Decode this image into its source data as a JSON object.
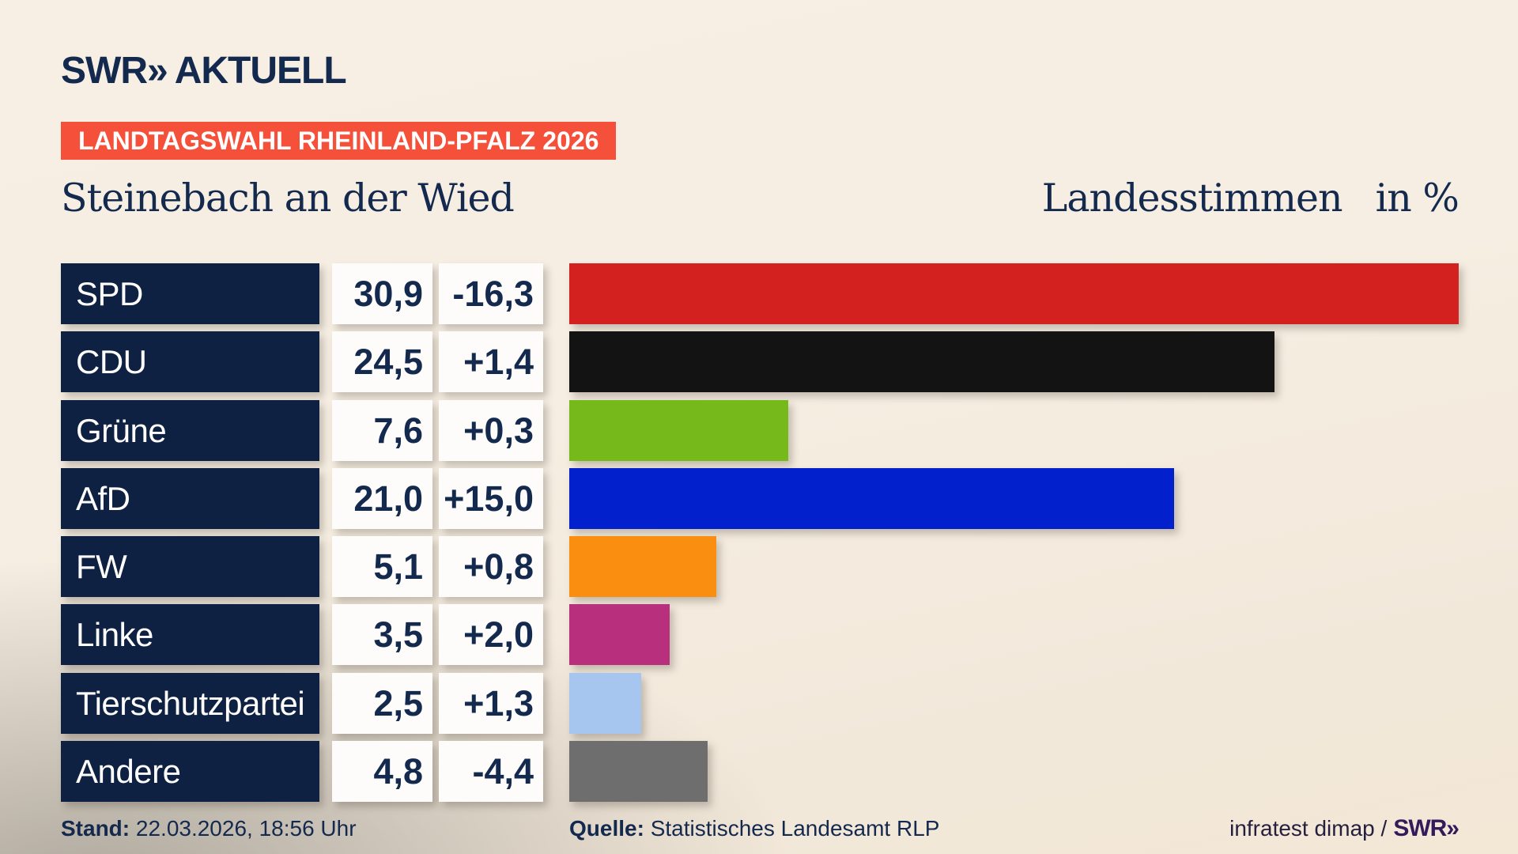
{
  "header": {
    "logo": {
      "swr": "SWR",
      "chevron": "»",
      "aktuell": "AKTUELL"
    },
    "badge": "LANDTAGSWAHL RHEINLAND-PFALZ 2026",
    "title_left": "Steinebach an der Wied",
    "title_right": "Landesstimmen",
    "title_unit": "in %"
  },
  "chart_data": {
    "type": "bar",
    "orientation": "horizontal",
    "title": "Steinebach an der Wied",
    "value_label": "Landesstimmen",
    "unit": "in %",
    "axis_max": 30.9,
    "grid": false,
    "legend": false,
    "categories": [
      "SPD",
      "CDU",
      "Grüne",
      "AfD",
      "FW",
      "Linke",
      "Tierschutzpartei",
      "Andere"
    ],
    "values": [
      30.9,
      24.5,
      7.6,
      21.0,
      5.1,
      3.5,
      2.5,
      4.8
    ],
    "diffs": [
      -16.3,
      1.4,
      0.3,
      15.0,
      0.8,
      2.0,
      1.3,
      -4.4
    ],
    "parties": [
      {
        "name": "SPD",
        "value": "30,9",
        "value_num": 30.9,
        "diff": "-16,3",
        "diff_num": -16.3,
        "color": "#d32120"
      },
      {
        "name": "CDU",
        "value": "24,5",
        "value_num": 24.5,
        "diff": "+1,4",
        "diff_num": 1.4,
        "color": "#131313"
      },
      {
        "name": "Grüne",
        "value": "7,6",
        "value_num": 7.6,
        "diff": "+0,3",
        "diff_num": 0.3,
        "color": "#76b91b"
      },
      {
        "name": "AfD",
        "value": "21,0",
        "value_num": 21.0,
        "diff": "+15,0",
        "diff_num": 15.0,
        "color": "#0221cc"
      },
      {
        "name": "FW",
        "value": "5,1",
        "value_num": 5.1,
        "diff": "+0,8",
        "diff_num": 0.8,
        "color": "#fa8e10"
      },
      {
        "name": "Linke",
        "value": "3,5",
        "value_num": 3.5,
        "diff": "+2,0",
        "diff_num": 2.0,
        "color": "#b82f7d"
      },
      {
        "name": "Tierschutzpartei",
        "value": "2,5",
        "value_num": 2.5,
        "diff": "+1,3",
        "diff_num": 1.3,
        "color": "#a7c6ef"
      },
      {
        "name": "Andere",
        "value": "4,8",
        "value_num": 4.8,
        "diff": "-4,4",
        "diff_num": -4.4,
        "color": "#6e6e6e"
      }
    ]
  },
  "footer": {
    "stand_label": "Stand:",
    "stand_value": "22.03.2026, 18:56 Uhr",
    "quelle_label": "Quelle:",
    "quelle_value": "Statistisches Landesamt RLP",
    "credit_text": "infratest dimap /",
    "credit_logo": "SWR»"
  },
  "colors": {
    "badge_background": "#f4503a",
    "badge_text": "#ffffff",
    "label_box_background": "#0e2142",
    "label_box_text": "#ffffff",
    "value_box_background": "#fdfcfa",
    "heading_text": "#14294e",
    "background_cream": "#f7efe4",
    "background_gray": "#c9c6c0",
    "credit_logo_color": "#321b5a"
  }
}
